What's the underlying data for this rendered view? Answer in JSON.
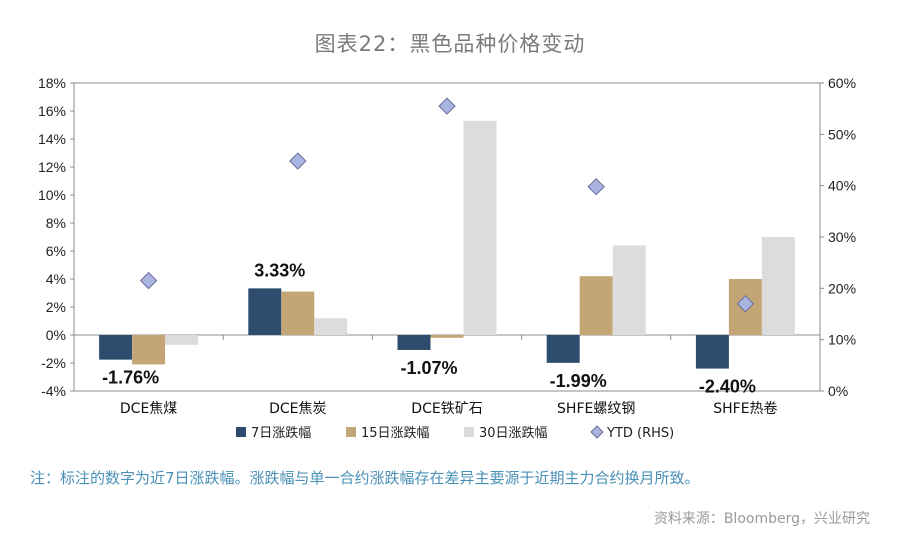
{
  "chart_data": {
    "type": "bar",
    "title": "图表22：黑色品种价格变动",
    "categories": [
      "DCE焦煤",
      "DCE焦炭",
      "DCE铁矿石",
      "SHFE螺纹钢",
      "SHFE热卷"
    ],
    "series": [
      {
        "name": "7日涨跌幅",
        "axis": "left",
        "color": "#2e4d6e",
        "values": [
          -1.76,
          3.33,
          -1.07,
          -1.99,
          -2.4
        ]
      },
      {
        "name": "15日涨跌幅",
        "axis": "left",
        "color": "#c4a676",
        "values": [
          -2.1,
          3.1,
          -0.2,
          4.2,
          4.0
        ]
      },
      {
        "name": "30日涨跌幅",
        "axis": "left",
        "color": "#dcdcdc",
        "values": [
          -0.7,
          1.2,
          15.3,
          6.4,
          7.0
        ]
      }
    ],
    "ytd_series": {
      "name": "YTD (RHS)",
      "axis": "right",
      "color": "#aab4e0",
      "values": [
        21.5,
        44.8,
        55.5,
        39.8,
        17.0
      ]
    },
    "data_labels": [
      "-1.76%",
      "3.33%",
      "-1.07%",
      "-1.99%",
      "-2.40%"
    ],
    "ylim": [
      -4,
      18
    ],
    "yticks": [
      -4,
      -2,
      0,
      2,
      4,
      6,
      8,
      10,
      12,
      14,
      16,
      18
    ],
    "ytick_labels": [
      "-4%",
      "-2%",
      "0%",
      "2%",
      "4%",
      "6%",
      "8%",
      "10%",
      "12%",
      "14%",
      "16%",
      "18%"
    ],
    "y2lim": [
      0,
      60
    ],
    "y2ticks": [
      0,
      10,
      20,
      30,
      40,
      50,
      60
    ],
    "y2tick_labels": [
      "0%",
      "10%",
      "20%",
      "30%",
      "40%",
      "50%",
      "60%"
    ],
    "legend_position": "bottom",
    "xlabel": "",
    "ylabel": ""
  },
  "note": "注：标注的数字为近7日涨跌幅。涨跌幅与单一合约涨跌幅存在差异主要源于近期主力合约换月所致。",
  "source": "资料来源：Bloomberg，兴业研究"
}
